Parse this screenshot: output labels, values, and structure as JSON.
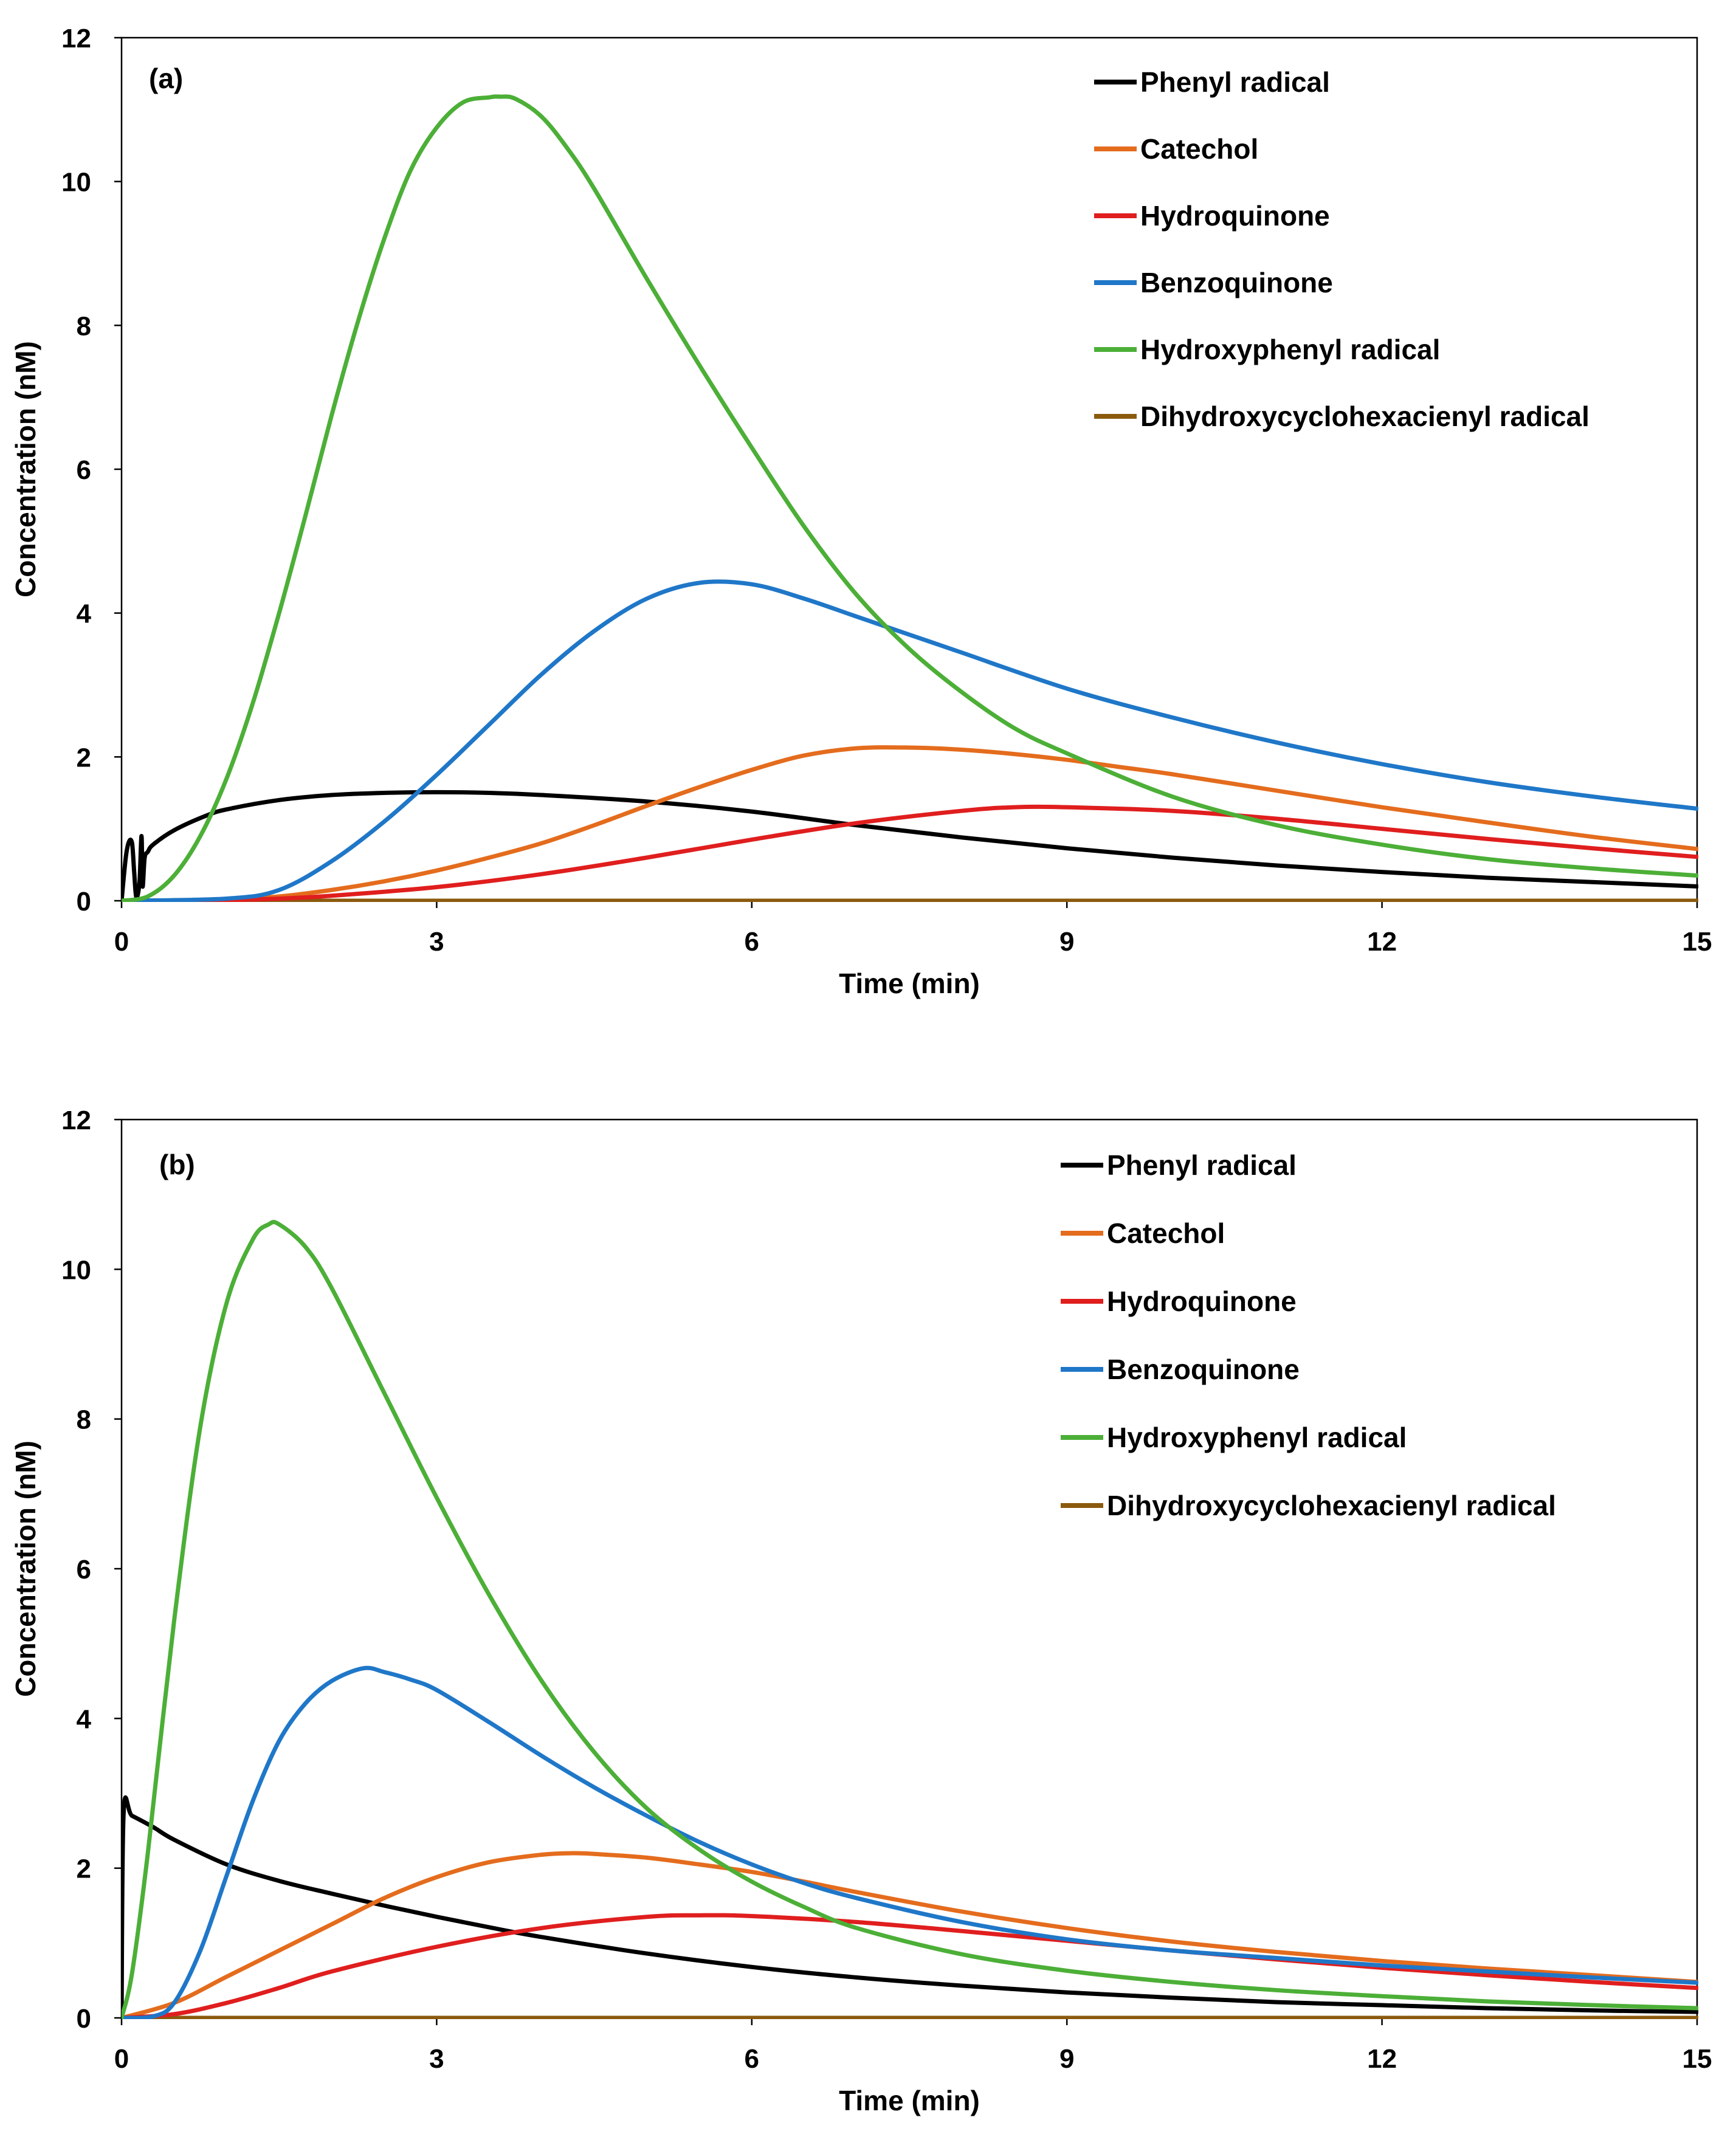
{
  "chart_data": [
    {
      "type": "line",
      "panel_label": "(a)",
      "xlabel": "Time (min)",
      "ylabel": "Concentration (nM)",
      "xlim": [
        0,
        15
      ],
      "ylim": [
        0,
        12
      ],
      "xticks": [
        "0",
        "3",
        "6",
        "9",
        "12",
        "15"
      ],
      "yticks": [
        "0",
        "2",
        "4",
        "6",
        "8",
        "10",
        "12"
      ],
      "grid": false,
      "legend_position": "top-right",
      "series": [
        {
          "name": "Phenyl radical",
          "color": "#000000",
          "x": [
            0,
            0.04,
            0.07,
            0.1,
            0.12,
            0.14,
            0.17,
            0.19,
            0.2,
            0.22,
            0.25,
            0.3,
            0.5,
            0.8,
            1.0,
            1.5,
            2.0,
            2.5,
            3.0,
            3.5,
            4.0,
            5.0,
            6.0,
            7.0,
            8.0,
            9.0,
            10.0,
            11.0,
            12.0,
            13.0,
            14.0,
            15.0
          ],
          "y": [
            0,
            0.6,
            0.82,
            0.8,
            0.4,
            0.05,
            0.25,
            0.9,
            0.2,
            0.6,
            0.68,
            0.78,
            0.98,
            1.18,
            1.27,
            1.4,
            1.47,
            1.5,
            1.51,
            1.5,
            1.47,
            1.38,
            1.24,
            1.05,
            0.88,
            0.73,
            0.6,
            0.49,
            0.4,
            0.32,
            0.26,
            0.2
          ]
        },
        {
          "name": "Catechol",
          "color": "#e46c1d",
          "x": [
            0,
            0.5,
            1.0,
            1.5,
            2.0,
            2.5,
            3.0,
            3.5,
            4.0,
            4.5,
            5.0,
            5.5,
            6.0,
            6.5,
            7.0,
            7.5,
            8.0,
            8.5,
            9.0,
            9.5,
            10.0,
            11.0,
            12.0,
            13.0,
            14.0,
            15.0
          ],
          "y": [
            0,
            0.0,
            0.02,
            0.06,
            0.15,
            0.27,
            0.42,
            0.6,
            0.8,
            1.05,
            1.32,
            1.58,
            1.82,
            2.02,
            2.12,
            2.13,
            2.1,
            2.04,
            1.96,
            1.86,
            1.76,
            1.53,
            1.3,
            1.09,
            0.89,
            0.72
          ]
        },
        {
          "name": "Hydroquinone",
          "color": "#e01e1e",
          "x": [
            0,
            1.0,
            1.5,
            2.0,
            3.0,
            4.0,
            5.0,
            6.0,
            7.0,
            8.0,
            8.5,
            9.0,
            10.0,
            11.0,
            12.0,
            13.0,
            14.0,
            15.0
          ],
          "y": [
            0,
            0.01,
            0.03,
            0.07,
            0.19,
            0.37,
            0.6,
            0.85,
            1.08,
            1.25,
            1.3,
            1.3,
            1.25,
            1.14,
            1.0,
            0.86,
            0.73,
            0.61
          ]
        },
        {
          "name": "Benzoquinone",
          "color": "#1f77c8",
          "x": [
            0,
            1.0,
            1.5,
            2.0,
            2.5,
            3.0,
            3.5,
            4.0,
            4.5,
            5.0,
            5.5,
            6.0,
            6.5,
            7.0,
            7.5,
            8.0,
            9.0,
            10.0,
            11.0,
            12.0,
            13.0,
            14.0,
            15.0
          ],
          "y": [
            0,
            0.03,
            0.15,
            0.55,
            1.1,
            1.75,
            2.45,
            3.15,
            3.75,
            4.2,
            4.42,
            4.4,
            4.2,
            3.95,
            3.7,
            3.45,
            2.95,
            2.55,
            2.2,
            1.9,
            1.65,
            1.45,
            1.28
          ]
        },
        {
          "name": "Hydroxyphenyl radical",
          "color": "#4caf37",
          "x": [
            0,
            0.25,
            0.5,
            0.75,
            1.0,
            1.25,
            1.5,
            1.75,
            2.0,
            2.25,
            2.5,
            2.75,
            3.0,
            3.25,
            3.5,
            3.6,
            3.75,
            4.0,
            4.25,
            4.5,
            5.0,
            5.5,
            6.0,
            6.5,
            7.0,
            7.5,
            8.0,
            8.5,
            9.0,
            10.0,
            11.0,
            12.0,
            13.0,
            14.0,
            15.0
          ],
          "y": [
            0,
            0.06,
            0.35,
            0.9,
            1.7,
            2.75,
            4.0,
            5.35,
            6.75,
            8.05,
            9.2,
            10.15,
            10.75,
            11.1,
            11.17,
            11.18,
            11.15,
            10.9,
            10.45,
            9.9,
            8.65,
            7.45,
            6.3,
            5.2,
            4.25,
            3.5,
            2.9,
            2.4,
            2.05,
            1.45,
            1.05,
            0.78,
            0.58,
            0.45,
            0.35
          ]
        },
        {
          "name": "Dihydroxycyclohexacienyl radical",
          "color": "#8b5a0d",
          "x": [
            0,
            15
          ],
          "y": [
            0,
            0
          ]
        }
      ]
    },
    {
      "type": "line",
      "panel_label": "(b)",
      "xlabel": "Time (min)",
      "ylabel": "Concentration (nM)",
      "xlim": [
        0,
        15
      ],
      "ylim": [
        0,
        12
      ],
      "xticks": [
        "0",
        "3",
        "6",
        "9",
        "12",
        "15"
      ],
      "yticks": [
        "0",
        "2",
        "4",
        "6",
        "8",
        "10",
        "12"
      ],
      "grid": false,
      "legend_position": "top-right",
      "series": [
        {
          "name": "Phenyl radical",
          "color": "#000000",
          "x": [
            0,
            0.02,
            0.1,
            0.3,
            0.5,
            1.0,
            1.5,
            2.0,
            2.5,
            3.0,
            3.5,
            4.0,
            5.0,
            6.0,
            7.0,
            8.0,
            9.0,
            10.0,
            11.0,
            12.0,
            13.0,
            14.0,
            15.0
          ],
          "y": [
            0,
            2.75,
            2.7,
            2.55,
            2.38,
            2.05,
            1.83,
            1.66,
            1.5,
            1.35,
            1.21,
            1.08,
            0.86,
            0.68,
            0.54,
            0.43,
            0.34,
            0.27,
            0.21,
            0.17,
            0.13,
            0.1,
            0.08
          ]
        },
        {
          "name": "Catechol",
          "color": "#e46c1d",
          "x": [
            0,
            0.5,
            1.0,
            1.5,
            2.0,
            2.5,
            3.0,
            3.5,
            4.0,
            4.3,
            4.5,
            5.0,
            5.5,
            6.0,
            6.5,
            7.0,
            8.0,
            9.0,
            10.0,
            11.0,
            12.0,
            13.0,
            14.0,
            15.0
          ],
          "y": [
            0,
            0.2,
            0.55,
            0.9,
            1.25,
            1.6,
            1.88,
            2.08,
            2.18,
            2.2,
            2.19,
            2.14,
            2.05,
            1.95,
            1.82,
            1.68,
            1.42,
            1.2,
            1.02,
            0.88,
            0.76,
            0.66,
            0.57,
            0.48
          ]
        },
        {
          "name": "Hydroquinone",
          "color": "#e01e1e",
          "x": [
            0,
            0.5,
            1.0,
            1.5,
            2.0,
            3.0,
            4.0,
            5.0,
            5.5,
            6.0,
            7.0,
            8.0,
            9.0,
            10.0,
            11.0,
            12.0,
            13.0,
            14.0,
            15.0
          ],
          "y": [
            0,
            0.05,
            0.2,
            0.4,
            0.62,
            0.95,
            1.2,
            1.35,
            1.37,
            1.36,
            1.28,
            1.16,
            1.03,
            0.9,
            0.78,
            0.67,
            0.57,
            0.48,
            0.4
          ]
        },
        {
          "name": "Benzoquinone",
          "color": "#1f77c8",
          "x": [
            0,
            0.3,
            0.5,
            0.75,
            1.0,
            1.25,
            1.5,
            1.75,
            2.0,
            2.3,
            2.5,
            2.75,
            3.0,
            3.5,
            4.0,
            4.5,
            5.0,
            5.5,
            6.0,
            6.5,
            7.0,
            8.0,
            9.0,
            10.0,
            11.0,
            12.0,
            13.0,
            14.0,
            15.0
          ],
          "y": [
            0,
            0.02,
            0.2,
            0.9,
            1.9,
            2.9,
            3.7,
            4.2,
            4.5,
            4.67,
            4.62,
            4.52,
            4.38,
            3.95,
            3.5,
            3.08,
            2.7,
            2.35,
            2.05,
            1.8,
            1.6,
            1.28,
            1.05,
            0.9,
            0.8,
            0.7,
            0.62,
            0.54,
            0.47
          ]
        },
        {
          "name": "Hydroxyphenyl radical",
          "color": "#4caf37",
          "x": [
            0,
            0.1,
            0.25,
            0.5,
            0.75,
            1.0,
            1.25,
            1.4,
            1.5,
            1.75,
            2.0,
            2.5,
            3.0,
            3.5,
            4.0,
            4.5,
            5.0,
            5.5,
            6.0,
            6.5,
            7.0,
            8.0,
            9.0,
            10.0,
            11.0,
            12.0,
            13.0,
            14.0,
            15.0
          ],
          "y": [
            0,
            0.6,
            2.2,
            5.3,
            7.9,
            9.55,
            10.4,
            10.6,
            10.6,
            10.3,
            9.75,
            8.35,
            6.95,
            5.65,
            4.5,
            3.55,
            2.8,
            2.25,
            1.82,
            1.48,
            1.2,
            0.85,
            0.63,
            0.48,
            0.37,
            0.29,
            0.22,
            0.17,
            0.13
          ]
        },
        {
          "name": "Dihydroxycyclohexacienyl radical",
          "color": "#8b5a0d",
          "x": [
            0,
            15
          ],
          "y": [
            0,
            0
          ]
        }
      ]
    }
  ]
}
